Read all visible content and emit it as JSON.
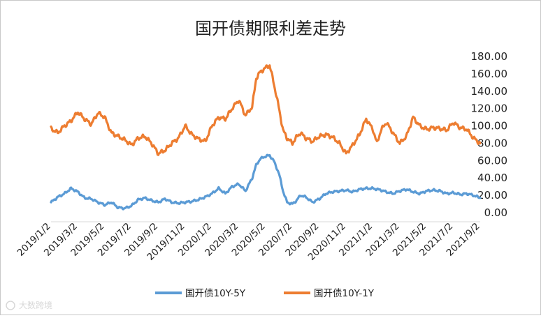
{
  "chart_data": {
    "type": "line",
    "title": "国开债期限利差走势",
    "xlabel": "",
    "ylabel": "",
    "ylim": [
      0,
      180
    ],
    "yticks": [
      "0.00",
      "20.00",
      "40.00",
      "60.00",
      "80.00",
      "100.00",
      "120.00",
      "140.00",
      "160.00",
      "180.00"
    ],
    "x_ticks": [
      "2019/1/2",
      "2019/3/2",
      "2019/5/2",
      "2019/7/2",
      "2019/9/2",
      "2019/11/2",
      "2020/1/2",
      "2020/3/2",
      "2020/5/2",
      "2020/7/2",
      "2020/9/2",
      "2020/11/2",
      "2021/1/2",
      "2021/3/2",
      "2021/5/2",
      "2021/7/2",
      "2021/9/2"
    ],
    "legend_position": "bottom",
    "grid": false,
    "x_months_from_start": [
      0,
      0.5,
      1,
      1.5,
      2,
      2.5,
      3,
      3.5,
      4,
      4.5,
      5,
      5.5,
      6,
      6.5,
      7,
      7.5,
      8,
      8.5,
      9,
      9.5,
      10,
      10.5,
      11,
      11.5,
      12,
      12.5,
      13,
      13.5,
      14,
      14.5,
      15,
      15.3,
      15.6,
      16,
      16.3,
      16.6,
      17,
      17.3,
      17.6,
      18,
      18.3,
      18.6,
      19,
      19.5,
      20,
      20.5,
      21,
      21.5,
      22,
      22.5,
      23,
      23.5,
      24,
      24.3,
      24.6,
      25,
      25.5,
      26,
      26.5,
      27,
      27.5,
      28,
      28.5,
      29,
      29.5,
      30,
      30.5,
      31,
      31.5,
      32
    ],
    "series": [
      {
        "name": "国开债10Y-5Y",
        "color": "#5b9bd5",
        "values": [
          12,
          18,
          22,
          28,
          24,
          17,
          16,
          12,
          9,
          12,
          6,
          5,
          8,
          15,
          17,
          14,
          12,
          16,
          12,
          11,
          12,
          13,
          15,
          18,
          22,
          28,
          22,
          30,
          33,
          25,
          40,
          55,
          62,
          65,
          66,
          60,
          45,
          25,
          12,
          10,
          14,
          20,
          18,
          12,
          16,
          22,
          24,
          25,
          26,
          24,
          27,
          28,
          28,
          27,
          26,
          24,
          22,
          25,
          27,
          24,
          22,
          25,
          26,
          25,
          22,
          23,
          21,
          22,
          20,
          17
        ]
      },
      {
        "name": "国开债10Y-1Y",
        "color": "#ed7d31",
        "values": [
          97,
          92,
          100,
          106,
          116,
          108,
          102,
          115,
          110,
          92,
          88,
          84,
          78,
          86,
          88,
          80,
          68,
          72,
          80,
          86,
          100,
          90,
          85,
          82,
          100,
          110,
          108,
          120,
          130,
          112,
          122,
          155,
          162,
          167,
          170,
          150,
          120,
          95,
          86,
          80,
          87,
          92,
          86,
          82,
          88,
          90,
          87,
          80,
          68,
          78,
          90,
          108,
          96,
          80,
          95,
          104,
          92,
          80,
          88,
          110,
          100,
          96,
          98,
          97,
          95,
          104,
          98,
          96,
          86,
          80
        ]
      }
    ]
  },
  "watermark": "大数跨境"
}
